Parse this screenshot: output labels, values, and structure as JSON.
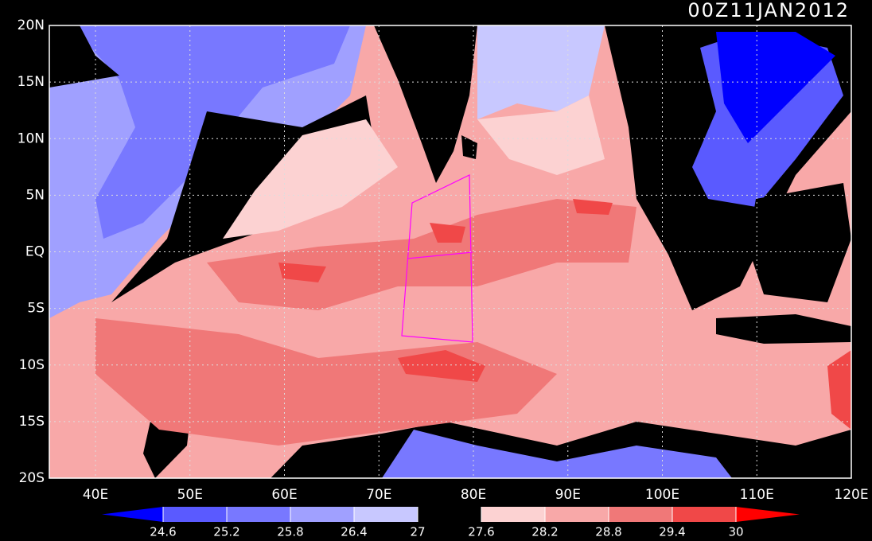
{
  "title": "00Z11JAN2012",
  "lat_labels": [
    "20N",
    "15N",
    "10N",
    "5N",
    "EQ",
    "5S",
    "10S",
    "15S",
    "20S"
  ],
  "lon_labels": [
    "40E",
    "50E",
    "60E",
    "70E",
    "80E",
    "90E",
    "100E",
    "110E",
    "120E"
  ],
  "colorbar": {
    "colors": [
      "#0000ff",
      "#5a5aff",
      "#7878ff",
      "#a0a0ff",
      "#c8c8ff",
      "#000000",
      "#fcd2d2",
      "#f8a8a8",
      "#f07878",
      "#f04848",
      "#ff0000"
    ],
    "labels": [
      24.6,
      25.2,
      25.8,
      26.4,
      27,
      27.6,
      28.2,
      28.8,
      29.4,
      30
    ]
  }
}
